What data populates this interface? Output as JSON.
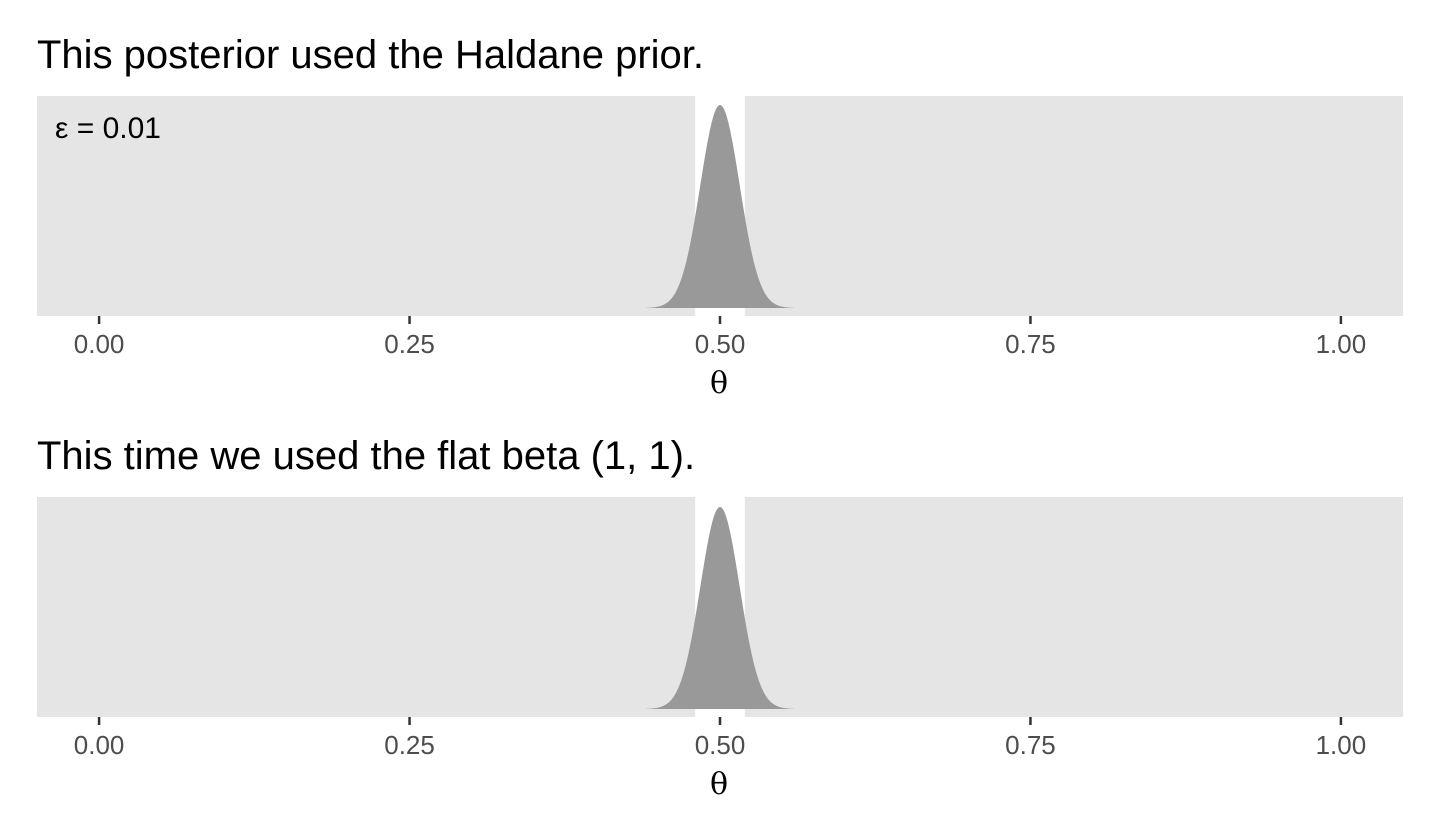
{
  "chart_data": [
    {
      "type": "area",
      "title": "This posterior used the Haldane prior.",
      "xlabel": "θ",
      "ylabel": "",
      "xlim": [
        -0.05,
        1.05
      ],
      "xticks": [
        "0.00",
        "0.25",
        "0.50",
        "0.75",
        "1.00"
      ],
      "annotation": "ε = 0.01",
      "distribution": {
        "family": "beta",
        "alpha": 500,
        "beta": 500
      },
      "highlight_interval": [
        0.48,
        0.52
      ],
      "grid": false,
      "fill_color": "#999999",
      "panel_color": "#e5e5e5",
      "highlight_color": "#ffffff"
    },
    {
      "type": "area",
      "title": "This time we used the flat beta (1, 1).",
      "xlabel": "θ",
      "ylabel": "",
      "xlim": [
        -0.05,
        1.05
      ],
      "xticks": [
        "0.00",
        "0.25",
        "0.50",
        "0.75",
        "1.00"
      ],
      "distribution": {
        "family": "beta",
        "alpha": 501,
        "beta": 501
      },
      "highlight_interval": [
        0.48,
        0.52
      ],
      "grid": false,
      "fill_color": "#999999",
      "panel_color": "#e5e5e5",
      "highlight_color": "#ffffff"
    }
  ]
}
